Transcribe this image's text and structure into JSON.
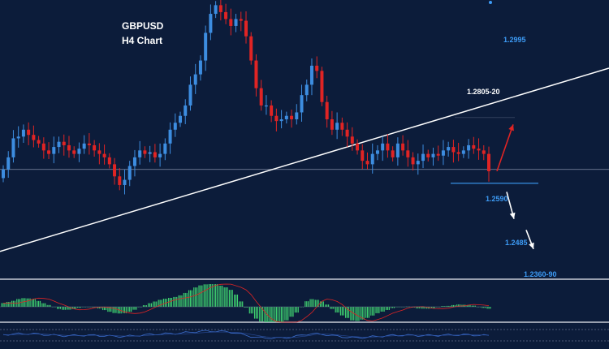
{
  "chart_data": {
    "type": "candlestick",
    "title": "GBPUSD",
    "subtitle": "H4 Chart",
    "price_range": [
      1.233,
      1.3135
    ],
    "levels": [
      {
        "value": 1.2995,
        "label": "1.2995"
      },
      {
        "value": 1.2805,
        "label": "1.2805-20"
      },
      {
        "value": 1.259,
        "label": "1.2590"
      },
      {
        "value": 1.2485,
        "label": "1.2485"
      },
      {
        "value": 1.236,
        "label": "1.2360-90"
      }
    ],
    "current_price": 1.2645,
    "trendline": {
      "start_price": 1.2408,
      "end_price": 1.2938
    },
    "arrows": [
      {
        "direction": "up",
        "color": "#e02424",
        "from": 1.264,
        "to": 1.2775
      },
      {
        "direction": "down",
        "color": "#ffffff",
        "from": 1.258,
        "to": 1.2502
      },
      {
        "direction": "down",
        "color": "#ffffff",
        "from": 1.247,
        "to": 1.2415
      }
    ],
    "candle_closes": [
      1.2645,
      1.268,
      1.2735,
      1.274,
      1.276,
      1.2745,
      1.273,
      1.272,
      1.27,
      1.269,
      1.271,
      1.2725,
      1.2715,
      1.27,
      1.269,
      1.2705,
      1.272,
      1.2715,
      1.27,
      1.269,
      1.268,
      1.266,
      1.2625,
      1.26,
      1.2615,
      1.2655,
      1.268,
      1.27,
      1.269,
      1.2695,
      1.268,
      1.269,
      1.272,
      1.276,
      1.278,
      1.28,
      1.283,
      1.289,
      1.292,
      1.296,
      1.304,
      1.3095,
      1.312,
      1.31,
      1.308,
      1.306,
      1.308,
      1.3075,
      1.303,
      1.296,
      1.288,
      1.283,
      1.283,
      1.28,
      1.2785,
      1.279,
      1.28,
      1.279,
      1.281,
      1.286,
      1.289,
      1.2945,
      1.293,
      1.284,
      1.279,
      1.276,
      1.278,
      1.276,
      1.274,
      1.272,
      1.27,
      1.267,
      1.266,
      1.269,
      1.27,
      1.272,
      1.27,
      1.268,
      1.272,
      1.27,
      1.268,
      1.266,
      1.267,
      1.269,
      1.268,
      1.269,
      1.2685,
      1.27,
      1.271,
      1.2695,
      1.269,
      1.27,
      1.2715,
      1.2705,
      1.27,
      1.269,
      1.264
    ],
    "colors": {
      "background": "#0c1c3a",
      "bull": "#3d8de0",
      "bear": "#e02424",
      "accent_label": "#3d9bf5",
      "histogram": "#3fd170",
      "signal": "#e02424"
    }
  }
}
